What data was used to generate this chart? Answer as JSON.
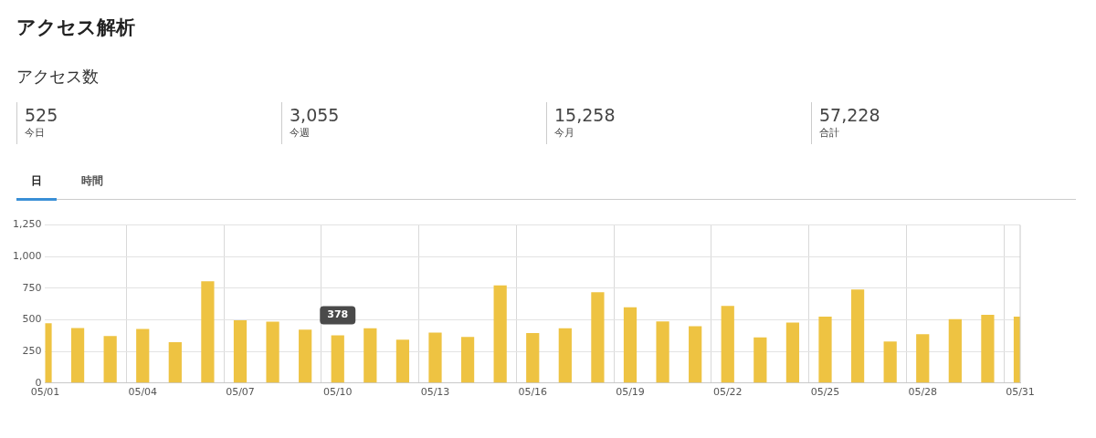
{
  "chart_data": [
    {
      "type": "other",
      "title": "アクセス解析",
      "subtitle": "アクセス数",
      "annotations": [
        "525",
        "今日",
        "3,055",
        "今週",
        "15,258",
        "今月",
        "57,228",
        "合計"
      ]
    },
    {
      "type": "bar",
      "annotations": [
        "日",
        "時間",
        {
          "text": "378",
          "x": "05/10",
          "y": 378
        }
      ],
      "categories": [
        "05/01",
        null,
        null,
        "05/04",
        null,
        null,
        "05/07",
        null,
        null,
        "05/10",
        null,
        null,
        "05/13",
        null,
        null,
        "05/16",
        null,
        null,
        "05/19",
        null,
        null,
        "05/22",
        null,
        null,
        "05/25",
        null,
        null,
        "05/28",
        null,
        null,
        "05/31"
      ],
      "values": [
        473,
        435,
        372,
        428,
        324,
        805,
        496,
        486,
        422,
        378,
        433,
        344,
        400,
        364,
        772,
        395,
        433,
        719,
        600,
        488,
        450,
        610,
        362,
        478,
        526,
        741,
        329,
        387,
        506,
        539,
        525
      ],
      "color": "#eec342",
      "ylim": [
        0,
        1250
      ],
      "yticks": [
        {
          "value": 0,
          "label": "0"
        },
        {
          "value": 250,
          "label": "250"
        },
        {
          "value": 500,
          "label": "500"
        },
        {
          "value": 750,
          "label": "750"
        },
        {
          "value": 1000,
          "label": "1,000"
        },
        {
          "value": 1250,
          "label": "1,250"
        }
      ],
      "grid": true
    }
  ]
}
